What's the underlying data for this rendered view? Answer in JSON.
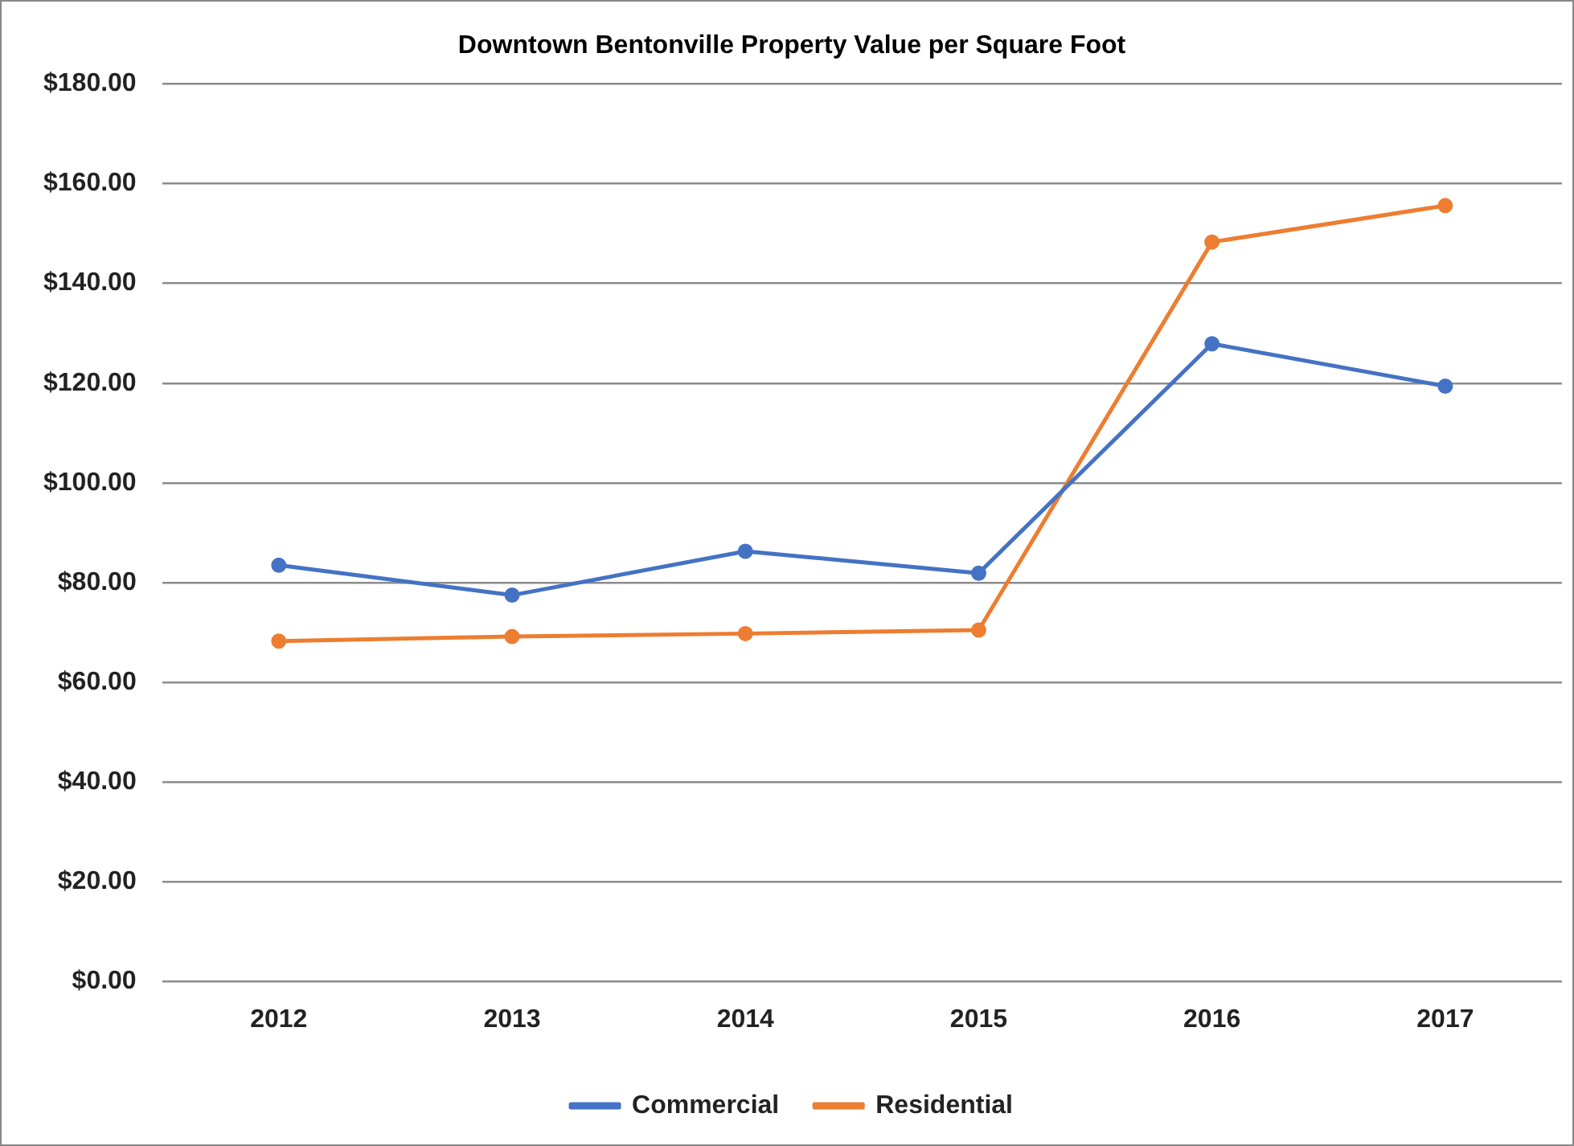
{
  "chart_data": {
    "type": "line",
    "title": "Downtown Bentonville Property Value per Square Foot",
    "categories": [
      "2012",
      "2013",
      "2014",
      "2015",
      "2016",
      "2017"
    ],
    "series": [
      {
        "name": "Commercial",
        "color": "#4472c4",
        "values": [
          83.5,
          77.5,
          86.3,
          81.9,
          127.9,
          119.4
        ]
      },
      {
        "name": "Residential",
        "color": "#ed7d31",
        "values": [
          68.3,
          69.2,
          69.8,
          70.5,
          148.3,
          155.6
        ]
      }
    ],
    "ylim": [
      0,
      180
    ],
    "yticks": [
      {
        "value": 0,
        "label": "$0.00"
      },
      {
        "value": 20,
        "label": "$20.00"
      },
      {
        "value": 40,
        "label": "$40.00"
      },
      {
        "value": 60,
        "label": "$60.00"
      },
      {
        "value": 80,
        "label": "$80.00"
      },
      {
        "value": 100,
        "label": "$100.00"
      },
      {
        "value": 120,
        "label": "$120.00"
      },
      {
        "value": 140,
        "label": "$140.00"
      },
      {
        "value": 160,
        "label": "$160.00"
      },
      {
        "value": 180,
        "label": "$180.00"
      }
    ],
    "grid": "y",
    "legend": "bottom",
    "marker": "circle",
    "line_style": "solid"
  }
}
